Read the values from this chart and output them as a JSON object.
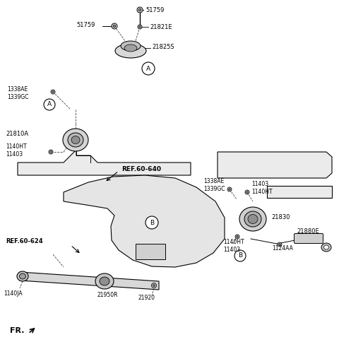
{
  "bg_color": "#ffffff",
  "lc": "#000000",
  "fig_width": 4.8,
  "fig_height": 5.01,
  "dpi": 100,
  "labels": {
    "51759_top": "51759",
    "21821E": "21821E",
    "21825S": "21825S",
    "51759_left": "51759",
    "1338AE_1339GC_left": "1338AE\n1339GC",
    "21810A": "21810A",
    "1140HT_11403_left": "1140HT\n11403",
    "A_left": "A",
    "A_top": "A",
    "ref60640": "REF.60-640",
    "1338AE_1339GC_right": "1338AE\n1339GC",
    "11403_1140HT_right": "11403\n1140HT",
    "21830": "21830",
    "21880E": "21880E",
    "B_right": "B",
    "1140HT_11403_right": "1140HT\n11403",
    "1124AA": "1124AA",
    "ref60624": "REF.60-624",
    "1140JA": "1140JA",
    "21950R": "21950R",
    "21920": "21920",
    "B_bottom": "B",
    "FR": "FR."
  }
}
